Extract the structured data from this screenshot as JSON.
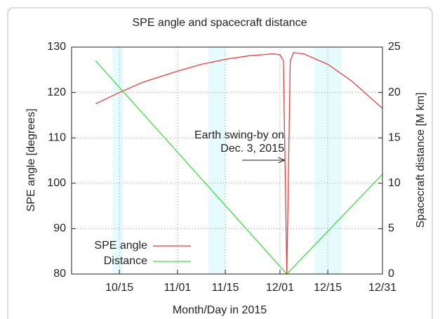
{
  "chart_data": {
    "type": "line",
    "title": "SPE angle and spacecraft distance",
    "x_label": "Month/Day in 2015",
    "y_label": "SPE angle [degrees]",
    "y2_label": "Spacecraft distance [M km]",
    "xlim": [
      "10/01",
      "12/31"
    ],
    "xticks": [
      "10/15",
      "11/01",
      "11/15",
      "12/01",
      "12/15",
      "12/31"
    ],
    "ylim": [
      80,
      130
    ],
    "yticks": [
      80,
      90,
      100,
      110,
      120,
      130
    ],
    "y2lim": [
      0,
      25
    ],
    "y2ticks": [
      0,
      5,
      10,
      15,
      20,
      25
    ],
    "grid": true,
    "legend": "lower left",
    "bands": [
      [
        "10/13",
        "10/16"
      ],
      [
        "11/10",
        "11/15"
      ],
      [
        "12/11",
        "12/19"
      ]
    ],
    "band_color": "#e6fbfd",
    "annotation": [
      "Earth swing-by on",
      "Dec. 3, 2015"
    ],
    "series": [
      {
        "name": "SPE angle",
        "color": "#f03c3c",
        "axis": "y",
        "x": [
          "10/08",
          "10/15",
          "10/22",
          "11/01",
          "11/08",
          "11/15",
          "11/22",
          "11/29",
          "12/01",
          "12/02",
          "12/03",
          "12/04",
          "12/05",
          "12/08",
          "12/15",
          "12/22",
          "12/31"
        ],
        "values": [
          117.5,
          120,
          122.3,
          124.7,
          126.2,
          127.3,
          128.1,
          128.5,
          128.3,
          127,
          80,
          127,
          128.8,
          128.5,
          126.2,
          122.5,
          116.5
        ]
      },
      {
        "name": "Distance",
        "color": "#3ee03e",
        "axis": "y2",
        "x": [
          "10/08",
          "12/03",
          "12/31"
        ],
        "values": [
          23.5,
          0,
          11
        ]
      }
    ]
  }
}
